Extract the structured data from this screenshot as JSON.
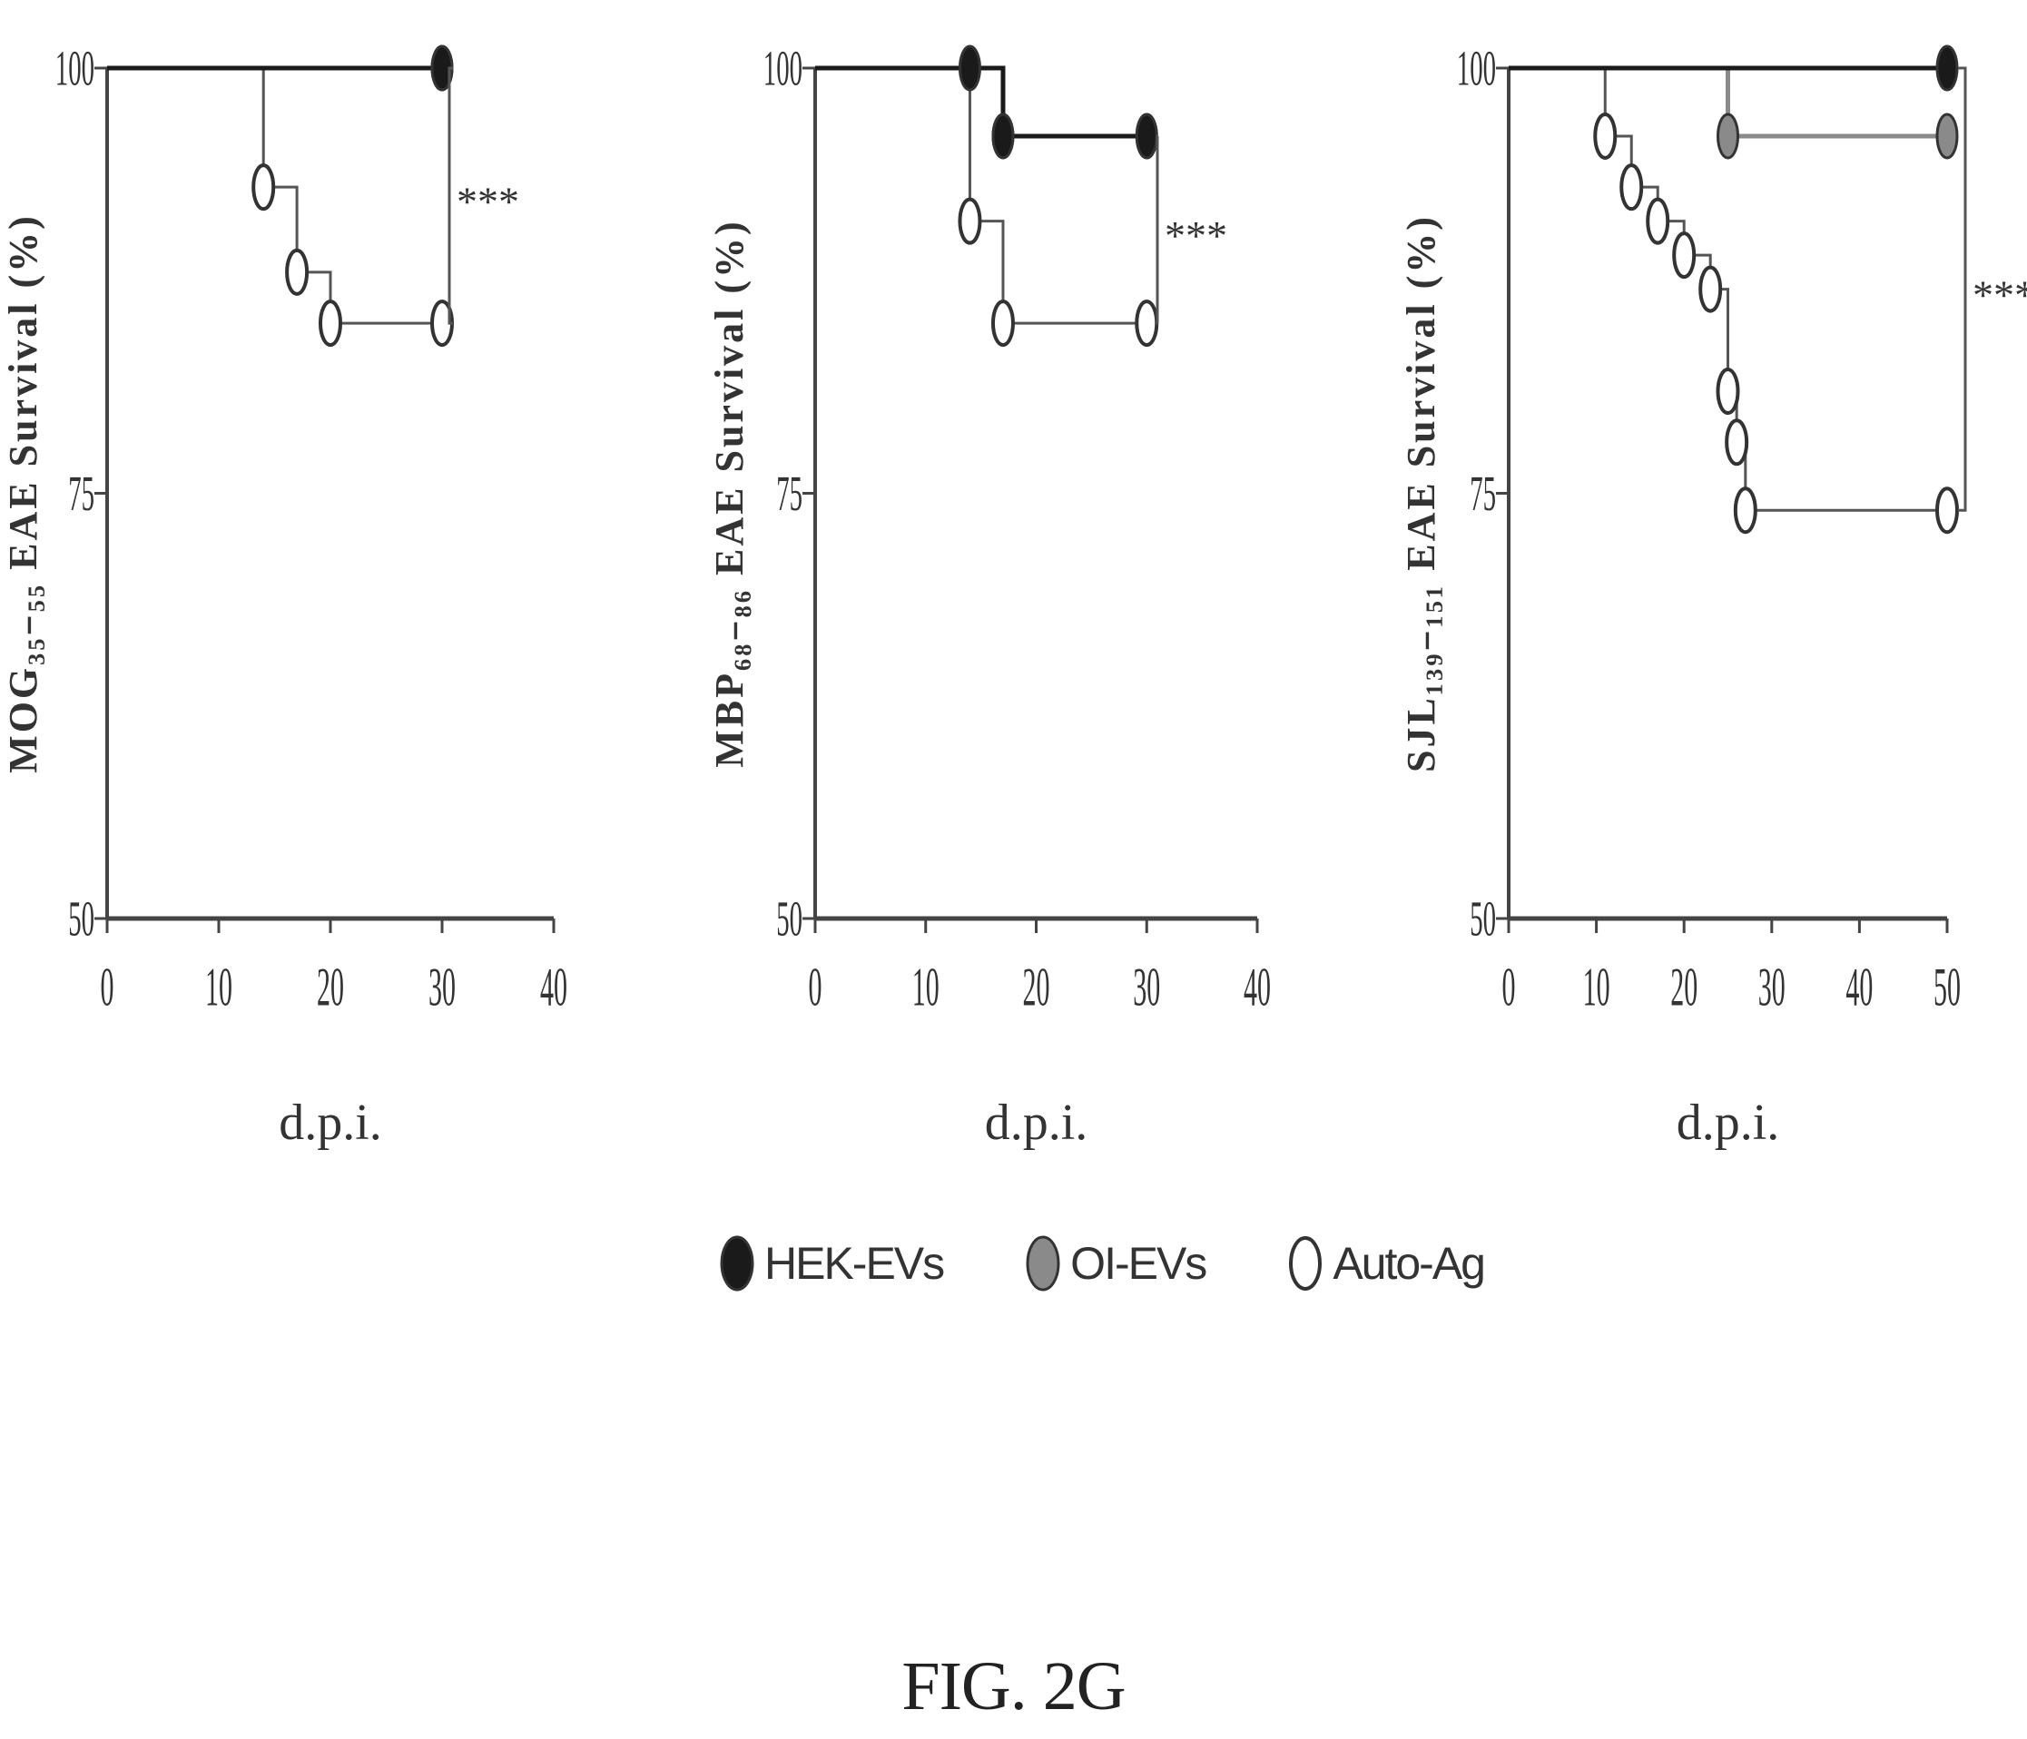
{
  "chart_data": [
    {
      "type": "line",
      "step": true,
      "ylabel": "MOG₃₅₋₅₅ EAE Survival (%)",
      "xlabel": "d.p.i.",
      "xlim": [
        0,
        40
      ],
      "ylim": [
        50,
        100
      ],
      "xticks": [
        0,
        10,
        20,
        30,
        40
      ],
      "yticks": [
        50,
        75,
        100
      ],
      "significance": "***",
      "series": [
        {
          "name": "HEK-EVs",
          "x": [
            0,
            30
          ],
          "y": [
            100,
            100
          ],
          "markers": [
            [
              30,
              100
            ]
          ]
        },
        {
          "name": "OI-EVs",
          "x": [
            0,
            30
          ],
          "y": [
            100,
            100
          ],
          "markers": [
            [
              30,
              100
            ]
          ]
        },
        {
          "name": "Auto-Ag",
          "x": [
            0,
            14,
            17,
            20,
            30
          ],
          "y": [
            100,
            93,
            88,
            85,
            85
          ],
          "markers": [
            [
              14,
              93
            ],
            [
              17,
              88
            ],
            [
              20,
              85
            ],
            [
              30,
              85
            ]
          ]
        }
      ]
    },
    {
      "type": "line",
      "step": true,
      "ylabel": "MBP₆₈₋₈₆ EAE Survival (%)",
      "xlabel": "d.p.i.",
      "xlim": [
        0,
        40
      ],
      "ylim": [
        50,
        100
      ],
      "xticks": [
        0,
        10,
        20,
        30,
        40
      ],
      "yticks": [
        50,
        75,
        100
      ],
      "significance": "***",
      "series": [
        {
          "name": "HEK-EVs",
          "x": [
            0,
            14,
            17,
            30
          ],
          "y": [
            100,
            100,
            96,
            96
          ],
          "markers": [
            [
              14,
              100
            ],
            [
              17,
              96
            ],
            [
              30,
              96
            ]
          ]
        },
        {
          "name": "OI-EVs",
          "x": [
            0,
            14,
            17,
            30
          ],
          "y": [
            100,
            100,
            96,
            96
          ],
          "markers": [
            [
              17,
              96
            ],
            [
              30,
              96
            ]
          ]
        },
        {
          "name": "Auto-Ag",
          "x": [
            0,
            14,
            17,
            30
          ],
          "y": [
            100,
            91,
            85,
            85
          ],
          "markers": [
            [
              14,
              91
            ],
            [
              17,
              85
            ],
            [
              30,
              85
            ]
          ]
        }
      ]
    },
    {
      "type": "line",
      "step": true,
      "ylabel": "SJL₁₃₉₋₁₅₁ EAE Survival (%)",
      "xlabel": "d.p.i.",
      "xlim": [
        0,
        50
      ],
      "ylim": [
        50,
        100
      ],
      "xticks": [
        0,
        10,
        20,
        30,
        40,
        50
      ],
      "yticks": [
        50,
        75,
        100
      ],
      "significance": "***",
      "series": [
        {
          "name": "HEK-EVs",
          "x": [
            0,
            50
          ],
          "y": [
            100,
            100
          ],
          "markers": [
            [
              50,
              100
            ]
          ]
        },
        {
          "name": "OI-EVs",
          "x": [
            0,
            25,
            50
          ],
          "y": [
            100,
            96,
            96
          ],
          "markers": [
            [
              25,
              96
            ],
            [
              50,
              96
            ]
          ]
        },
        {
          "name": "Auto-Ag",
          "x": [
            0,
            11,
            14,
            17,
            20,
            23,
            25,
            26,
            27,
            50
          ],
          "y": [
            100,
            96,
            93,
            91,
            89,
            87,
            81,
            78,
            74,
            74
          ],
          "markers": [
            [
              11,
              96
            ],
            [
              14,
              93
            ],
            [
              17,
              91
            ],
            [
              20,
              89
            ],
            [
              23,
              87
            ],
            [
              25,
              81
            ],
            [
              26,
              78
            ],
            [
              27,
              74
            ],
            [
              50,
              74
            ]
          ]
        }
      ]
    }
  ],
  "legend": {
    "items": [
      {
        "label": "HEK-EVs",
        "fill": "#1a1a1a"
      },
      {
        "label": "OI-EVs",
        "fill": "#8a8a8a"
      },
      {
        "label": "Auto-Ag",
        "fill": "#ffffff"
      }
    ]
  },
  "figure_label": "FIG. 2G",
  "colors": {
    "axis": "#444444",
    "line": "#555555",
    "hek": "#1a1a1a",
    "oi": "#8a8a8a",
    "auto": "#ffffff"
  }
}
